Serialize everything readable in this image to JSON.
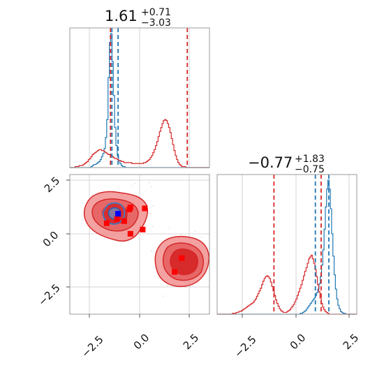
{
  "chart_data": [
    {
      "type": "histogram",
      "panel": "marginal-param1",
      "title": {
        "value": "1.61",
        "upper": "+0.71",
        "lower": "−3.03"
      },
      "xlim": [
        -3.4,
        3.4
      ],
      "bin_edges": [
        -3.4,
        3.4
      ],
      "series": [
        {
          "color": "#1f77b4",
          "counts": [
            0,
            0,
            0,
            0,
            0,
            0,
            0,
            0,
            0,
            0,
            0,
            0,
            0,
            0,
            0,
            0,
            1,
            2,
            3,
            3,
            4,
            5,
            6,
            8,
            11,
            14,
            19,
            30,
            48,
            90,
            125,
            134,
            106,
            72,
            40,
            22,
            12,
            7,
            4,
            2,
            1,
            1,
            0,
            0,
            0,
            0,
            0,
            0,
            0,
            0,
            0,
            0,
            0,
            0,
            0,
            0,
            0,
            0,
            0,
            0,
            0,
            0,
            0,
            0,
            0,
            0,
            0,
            0,
            0,
            0,
            0,
            0,
            0,
            0,
            0,
            0,
            0,
            0,
            0,
            0,
            0,
            0,
            0,
            0,
            0,
            0,
            0,
            0,
            0,
            0,
            0,
            0,
            0,
            0,
            0,
            0,
            0,
            0,
            0,
            0,
            0,
            0,
            0,
            0,
            0,
            0
          ]
        },
        {
          "color": "#d62728",
          "counts": [
            0,
            0,
            0,
            0,
            1,
            1,
            1,
            2,
            2,
            2,
            3,
            4,
            5,
            6,
            8,
            9,
            11,
            13,
            14,
            15,
            16,
            17,
            18,
            18,
            17,
            17,
            16,
            15,
            14,
            13,
            13,
            12,
            11,
            10,
            9,
            9,
            8,
            7,
            7,
            6,
            6,
            5,
            5,
            5,
            5,
            5,
            5,
            4,
            4,
            4,
            4,
            4,
            4,
            4,
            4,
            4,
            5,
            5,
            6,
            7,
            8,
            10,
            12,
            15,
            18,
            22,
            26,
            31,
            36,
            40,
            44,
            47,
            48,
            47,
            44,
            40,
            35,
            29,
            23,
            17,
            12,
            8,
            5,
            3,
            2,
            1,
            1,
            1,
            0,
            0,
            0,
            0,
            0,
            0,
            0,
            0,
            0,
            0,
            0,
            0,
            0,
            0,
            0,
            0,
            0,
            0
          ]
        }
      ],
      "quantile_lines": [
        {
          "color": "#1f77b4",
          "x": -1.05
        },
        {
          "color": "#1f77b4",
          "x": -1.35
        },
        {
          "color": "#d62728",
          "x": -1.42
        },
        {
          "color": "#d62728",
          "x": 2.32
        }
      ]
    },
    {
      "type": "histogram",
      "panel": "marginal-param2",
      "title": {
        "value": "−0.77",
        "upper": "+1.83",
        "lower": "−0.75"
      },
      "xlim": [
        -4.5,
        2.75
      ],
      "xticks": [
        "−2.5",
        "0.0",
        "2.5"
      ],
      "series": [
        {
          "color": "#1f77b4",
          "counts": [
            0,
            0,
            0,
            0,
            0,
            0,
            0,
            0,
            0,
            0,
            0,
            0,
            0,
            0,
            0,
            0,
            0,
            0,
            0,
            0,
            0,
            0,
            0,
            0,
            0,
            0,
            0,
            0,
            0,
            0,
            0,
            0,
            0,
            0,
            0,
            0,
            0,
            0,
            0,
            0,
            0,
            0,
            0,
            0,
            0,
            0,
            0,
            0,
            0,
            0,
            0,
            0,
            0,
            0,
            0,
            0,
            0,
            0,
            0,
            0,
            0,
            0,
            0,
            0,
            0,
            0,
            1,
            1,
            2,
            3,
            4,
            6,
            8,
            10,
            12,
            14,
            16,
            18,
            21,
            24,
            28,
            34,
            42,
            55,
            72,
            95,
            120,
            140,
            150,
            140,
            118,
            90,
            65,
            44,
            28,
            17,
            10,
            6,
            3,
            2,
            1,
            1,
            0,
            0,
            0,
            0,
            0,
            0,
            0,
            0,
            0
          ]
        },
        {
          "color": "#d62728",
          "counts": [
            0,
            0,
            0,
            0,
            0,
            0,
            0,
            0,
            0,
            0,
            0,
            0,
            1,
            1,
            1,
            2,
            2,
            3,
            3,
            4,
            5,
            6,
            7,
            8,
            9,
            10,
            11,
            12,
            13,
            15,
            17,
            20,
            23,
            26,
            29,
            33,
            37,
            40,
            42,
            43,
            42,
            40,
            36,
            31,
            26,
            21,
            16,
            12,
            9,
            6,
            4,
            3,
            2,
            2,
            2,
            3,
            4,
            5,
            7,
            9,
            11,
            14,
            17,
            21,
            25,
            29,
            33,
            38,
            43,
            48,
            52,
            57,
            62,
            64,
            66,
            62,
            57,
            50,
            42,
            33,
            25,
            18,
            12,
            8,
            5,
            3,
            2,
            1,
            0,
            0,
            0,
            0,
            0,
            0,
            0,
            0,
            0,
            0,
            0,
            0,
            0,
            0,
            0,
            0,
            0,
            0,
            0,
            0,
            0,
            0
          ]
        }
      ],
      "quantile_lines": [
        {
          "color": "#1f77b4",
          "x": 0.6
        },
        {
          "color": "#1f77b4",
          "x": 1.3
        },
        {
          "color": "#d62728",
          "x": -1.55
        },
        {
          "color": "#d62728",
          "x": 0.9
        }
      ]
    },
    {
      "type": "scatter",
      "panel": "joint",
      "xlim": [
        -3.4,
        3.4
      ],
      "ylim": [
        -3.75,
        2.85
      ],
      "xticks": [
        "−2.5",
        "0.0",
        "2.5"
      ],
      "yticks": [
        "2.5",
        "0.0",
        "−2.5"
      ],
      "red_points": [
        {
          "x": -1.1,
          "y": 0.75
        },
        {
          "x": -1.6,
          "y": 0.55
        },
        {
          "x": -0.75,
          "y": 0.65
        },
        {
          "x": -0.45,
          "y": 1.3
        },
        {
          "x": -0.5,
          "y": 1.2
        },
        {
          "x": 0.25,
          "y": 1.25
        },
        {
          "x": 0.15,
          "y": 0.25
        },
        {
          "x": -0.45,
          "y": 0.05
        },
        {
          "x": 1.7,
          "y": -1.75
        },
        {
          "x": 2.05,
          "y": -1.1
        }
      ],
      "blue_points": [
        {
          "x": -1.05,
          "y": 1.0
        }
      ]
    }
  ]
}
